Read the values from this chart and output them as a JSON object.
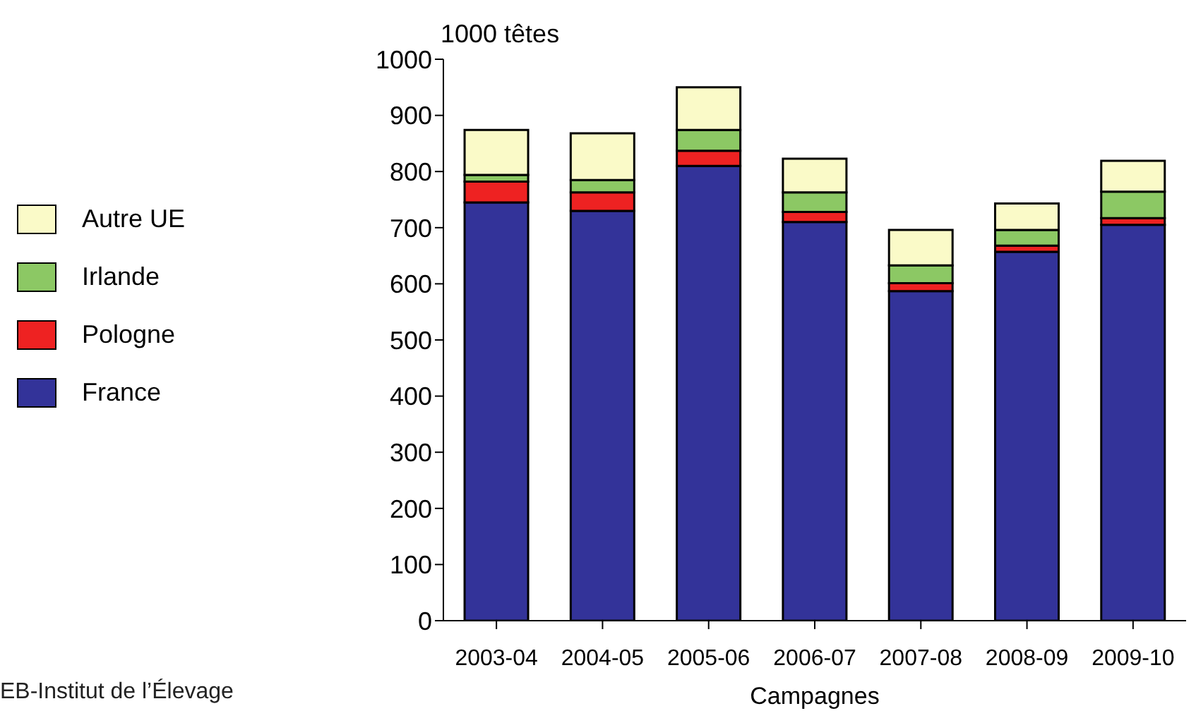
{
  "chart_data": {
    "type": "bar",
    "stacked": true,
    "xlabel": "Campagnes",
    "ylabel": "1000 têtes",
    "categories": [
      "2003-04",
      "2004-05",
      "2005-06",
      "2006-07",
      "2007-08",
      "2008-09",
      "2009-10"
    ],
    "series": [
      {
        "name": "France",
        "color": "#333399",
        "values": [
          745,
          730,
          810,
          710,
          587,
          657,
          705
        ]
      },
      {
        "name": "Pologne",
        "color": "#ee2222",
        "values": [
          37,
          33,
          27,
          18,
          14,
          11,
          12
        ]
      },
      {
        "name": "Irlande",
        "color": "#8cc864",
        "values": [
          12,
          22,
          37,
          35,
          32,
          28,
          47
        ]
      },
      {
        "name": "Autre UE",
        "color": "#fafac8",
        "values": [
          80,
          83,
          76,
          60,
          63,
          47,
          55
        ]
      }
    ],
    "ylim": [
      0,
      1000
    ],
    "yticks": [
      0,
      100,
      200,
      300,
      400,
      500,
      600,
      700,
      800,
      900,
      1000
    ],
    "grid": false,
    "legend": "left",
    "annotations": [
      "EB-Institut de l’Élevage"
    ]
  }
}
